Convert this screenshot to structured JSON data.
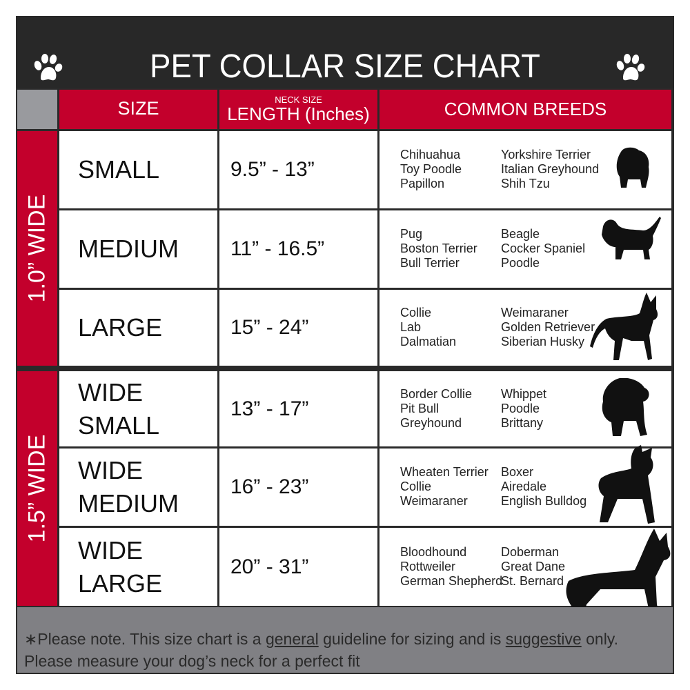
{
  "title": "PET COLLAR SIZE CHART",
  "headers": {
    "size": "SIZE",
    "length_small": "NECK SIZE",
    "length": "LENGTH (Inches)",
    "breeds": "COMMON BREEDS"
  },
  "groups": [
    {
      "label": "1.0” WIDE"
    },
    {
      "label": "1.5” WIDE"
    }
  ],
  "rows": [
    {
      "size": "SMALL",
      "length": "9.5” - 13”",
      "breeds_a": [
        "Chihuahua",
        "Toy Poodle",
        "Papillon"
      ],
      "breeds_b": [
        "Yorkshire Terrier",
        "Italian Greyhound",
        "Shih Tzu"
      ],
      "icon": "small-dog-silhouette-icon"
    },
    {
      "size": "MEDIUM",
      "length": "11” - 16.5”",
      "breeds_a": [
        "Pug",
        "Boston Terrier",
        "Bull Terrier"
      ],
      "breeds_b": [
        "Beagle",
        "Cocker Spaniel",
        "Poodle"
      ],
      "icon": "basset-silhouette-icon"
    },
    {
      "size": "LARGE",
      "length": "15” - 24”",
      "breeds_a": [
        "Collie",
        "Lab",
        "Dalmatian"
      ],
      "breeds_b": [
        "Weimaraner",
        "Golden Retriever",
        "Siberian Husky"
      ],
      "icon": "shepherd-silhouette-icon"
    },
    {
      "size": "WIDE SMALL",
      "length": "13” - 17”",
      "breeds_a": [
        "Border Collie",
        "Pit Bull",
        "Greyhound"
      ],
      "breeds_b": [
        "Whippet",
        "Poodle",
        "Brittany"
      ],
      "icon": "bulldog-silhouette-icon"
    },
    {
      "size": "WIDE MEDIUM",
      "length": "16” - 23”",
      "breeds_a": [
        "Wheaten Terrier",
        "Collie",
        "Weimaraner"
      ],
      "breeds_b": [
        "Boxer",
        "Airedale",
        "English Bulldog"
      ],
      "icon": "pitbull-silhouette-icon"
    },
    {
      "size": "WIDE LARGE",
      "length": "20” - 31”",
      "breeds_a": [
        "Bloodhound",
        "Rottweiler",
        "German Shepherd"
      ],
      "breeds_b": [
        "Doberman",
        "Great Dane",
        "St. Bernard"
      ],
      "icon": "doberman-silhouette-icon"
    }
  ],
  "footer": {
    "p1": "∗Please note. This size chart is a ",
    "u1": "general",
    "p2": " guideline for sizing and is ",
    "u2": "suggestive",
    "p3": " only.",
    "line2": "Please measure your dog’s neck for a perfect fit"
  },
  "colors": {
    "red": "#c3002c",
    "dark": "#282828",
    "gray": "#808084"
  }
}
